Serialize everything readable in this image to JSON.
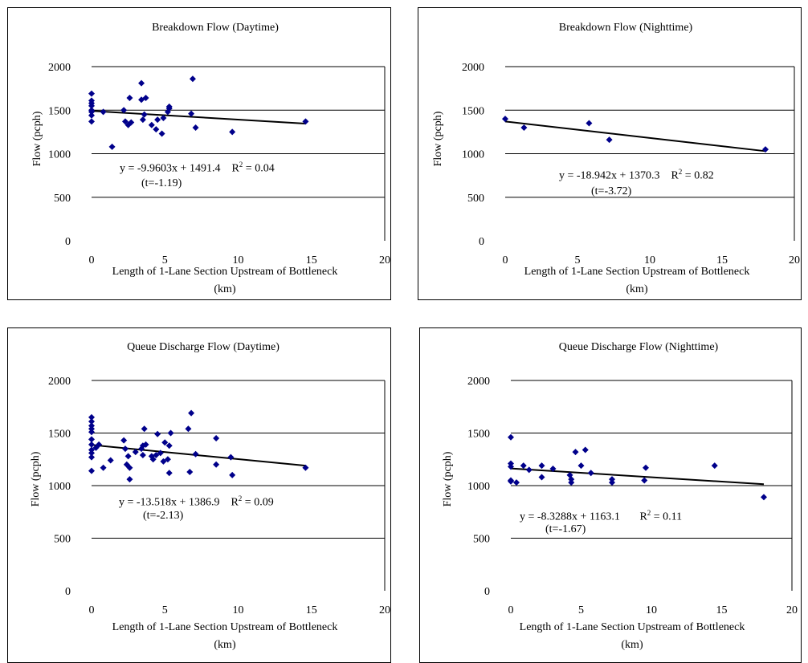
{
  "colors": {
    "marker": "#00008B",
    "trend": "#000000",
    "grid": "#000000"
  },
  "chart_data": [
    {
      "id": "bd-day",
      "type": "scatter",
      "title": "Breakdown Flow (Daytime)",
      "xlabel_line1": "Length of 1-Lane Section Upstream of Bottleneck",
      "xlabel_line2": "(km)",
      "ylabel": "Flow (pcph)",
      "xlim": [
        0,
        20
      ],
      "ylim": [
        0,
        2000
      ],
      "xticks": [
        0,
        5,
        10,
        15,
        20
      ],
      "yticks": [
        0,
        500,
        1000,
        1500,
        2000
      ],
      "grid": "horizontal",
      "trend": {
        "slope": -9.9603,
        "intercept": 1491.4,
        "x_range": [
          0,
          14.6
        ]
      },
      "equation": "y = -9.9603x + 1491.4",
      "r2_label": "R",
      "r2_sup": "2",
      "r2_value": " = 0.04",
      "tstat": "(t=-1.19)",
      "points": [
        [
          0,
          1690
        ],
        [
          0,
          1610
        ],
        [
          0,
          1580
        ],
        [
          0,
          1550
        ],
        [
          0,
          1500
        ],
        [
          0,
          1480
        ],
        [
          0,
          1440
        ],
        [
          0,
          1370
        ],
        [
          0.8,
          1480
        ],
        [
          1.4,
          1080
        ],
        [
          2.2,
          1500
        ],
        [
          2.3,
          1370
        ],
        [
          2.5,
          1330
        ],
        [
          2.6,
          1640
        ],
        [
          2.7,
          1360
        ],
        [
          3.4,
          1810
        ],
        [
          3.4,
          1620
        ],
        [
          3.5,
          1390
        ],
        [
          3.6,
          1450
        ],
        [
          3.7,
          1640
        ],
        [
          4.1,
          1330
        ],
        [
          4.4,
          1280
        ],
        [
          4.5,
          1390
        ],
        [
          4.8,
          1230
        ],
        [
          4.9,
          1410
        ],
        [
          5.2,
          1480
        ],
        [
          5.3,
          1520
        ],
        [
          5.3,
          1540
        ],
        [
          6.8,
          1460
        ],
        [
          6.9,
          1860
        ],
        [
          7.1,
          1300
        ],
        [
          9.6,
          1250
        ],
        [
          14.6,
          1370
        ]
      ]
    },
    {
      "id": "bd-night",
      "type": "scatter",
      "title": "Breakdown Flow (Nighttime)",
      "xlabel_line1": "Length of 1-Lane Section Upstream of Bottleneck",
      "xlabel_line2": "(km)",
      "ylabel": "Flow (pcph)",
      "xlim": [
        0,
        20
      ],
      "ylim": [
        0,
        2000
      ],
      "xticks": [
        0,
        5,
        10,
        15,
        20
      ],
      "yticks": [
        0,
        500,
        1000,
        1500,
        2000
      ],
      "grid": "horizontal",
      "trend": {
        "slope": -18.942,
        "intercept": 1370.3,
        "x_range": [
          0,
          18
        ]
      },
      "equation": "y = -18.942x + 1370.3",
      "r2_label": "R",
      "r2_sup": "2",
      "r2_value": " = 0.82",
      "tstat": "(t=-3.72)",
      "points": [
        [
          0,
          1400
        ],
        [
          1.3,
          1300
        ],
        [
          5.8,
          1350
        ],
        [
          7.2,
          1160
        ],
        [
          18,
          1050
        ]
      ]
    },
    {
      "id": "qd-day",
      "type": "scatter",
      "title": "Queue Discharge Flow (Daytime)",
      "xlabel_line1": "Length of 1-Lane Section Upstream of Bottleneck",
      "xlabel_line2": "(km)",
      "ylabel": "Flow (pcph)",
      "xlim": [
        0,
        20
      ],
      "ylim": [
        0,
        2000
      ],
      "xticks": [
        0,
        5,
        10,
        15,
        20
      ],
      "yticks": [
        0,
        500,
        1000,
        1500,
        2000
      ],
      "grid": "horizontal",
      "trend": {
        "slope": -13.518,
        "intercept": 1386.9,
        "x_range": [
          0,
          14.6
        ]
      },
      "equation": "y = -13.518x + 1386.9",
      "r2_label": "R",
      "r2_sup": "2",
      "r2_value": " = 0.09",
      "tstat": "(t=-2.13)",
      "points": [
        [
          0,
          1650
        ],
        [
          0,
          1610
        ],
        [
          0,
          1570
        ],
        [
          0,
          1540
        ],
        [
          0,
          1510
        ],
        [
          0,
          1440
        ],
        [
          0,
          1390
        ],
        [
          0,
          1340
        ],
        [
          0,
          1310
        ],
        [
          0,
          1270
        ],
        [
          0,
          1140
        ],
        [
          0.3,
          1360
        ],
        [
          0.5,
          1390
        ],
        [
          0.8,
          1170
        ],
        [
          1.3,
          1240
        ],
        [
          2.2,
          1430
        ],
        [
          2.3,
          1350
        ],
        [
          2.4,
          1200
        ],
        [
          2.5,
          1280
        ],
        [
          2.6,
          1170
        ],
        [
          2.6,
          1060
        ],
        [
          3.0,
          1320
        ],
        [
          3.4,
          1350
        ],
        [
          3.5,
          1290
        ],
        [
          3.5,
          1380
        ],
        [
          3.6,
          1540
        ],
        [
          3.7,
          1390
        ],
        [
          4.1,
          1280
        ],
        [
          4.2,
          1250
        ],
        [
          4.4,
          1290
        ],
        [
          4.5,
          1490
        ],
        [
          4.7,
          1310
        ],
        [
          4.9,
          1230
        ],
        [
          5.0,
          1410
        ],
        [
          5.2,
          1250
        ],
        [
          5.3,
          1380
        ],
        [
          5.3,
          1120
        ],
        [
          5.4,
          1500
        ],
        [
          6.6,
          1540
        ],
        [
          6.7,
          1130
        ],
        [
          6.8,
          1690
        ],
        [
          7.1,
          1300
        ],
        [
          8.5,
          1450
        ],
        [
          8.5,
          1200
        ],
        [
          9.5,
          1270
        ],
        [
          9.6,
          1100
        ],
        [
          14.6,
          1170
        ]
      ]
    },
    {
      "id": "qd-night",
      "type": "scatter",
      "title": "Queue Discharge Flow (Nighttime)",
      "xlabel_line1": "Length of 1-Lane Section Upstream of Bottleneck",
      "xlabel_line2": "(km)",
      "ylabel": "Flow (pcph)",
      "xlim": [
        0,
        20
      ],
      "ylim": [
        0,
        2000
      ],
      "xticks": [
        0,
        5,
        10,
        15,
        20
      ],
      "yticks": [
        0,
        500,
        1000,
        1500,
        2000
      ],
      "grid": "horizontal",
      "trend": {
        "slope": -8.3288,
        "intercept": 1163.1,
        "x_range": [
          0,
          18
        ]
      },
      "equation": "y = -8.3288x + 1163.1",
      "r2_label": "R",
      "r2_sup": "2",
      "r2_value": " = 0.11",
      "tstat": "(t=-1.67)",
      "points": [
        [
          0,
          1460
        ],
        [
          0,
          1210
        ],
        [
          0,
          1180
        ],
        [
          0,
          1050
        ],
        [
          0,
          1040
        ],
        [
          0.4,
          1030
        ],
        [
          0.9,
          1190
        ],
        [
          1.3,
          1150
        ],
        [
          2.2,
          1190
        ],
        [
          2.2,
          1080
        ],
        [
          3.0,
          1160
        ],
        [
          4.2,
          1100
        ],
        [
          4.3,
          1060
        ],
        [
          4.3,
          1030
        ],
        [
          4.6,
          1320
        ],
        [
          5.0,
          1190
        ],
        [
          5.3,
          1340
        ],
        [
          5.7,
          1120
        ],
        [
          7.2,
          1060
        ],
        [
          7.2,
          1030
        ],
        [
          9.5,
          1050
        ],
        [
          9.6,
          1170
        ],
        [
          14.5,
          1190
        ],
        [
          18,
          890
        ]
      ]
    }
  ]
}
